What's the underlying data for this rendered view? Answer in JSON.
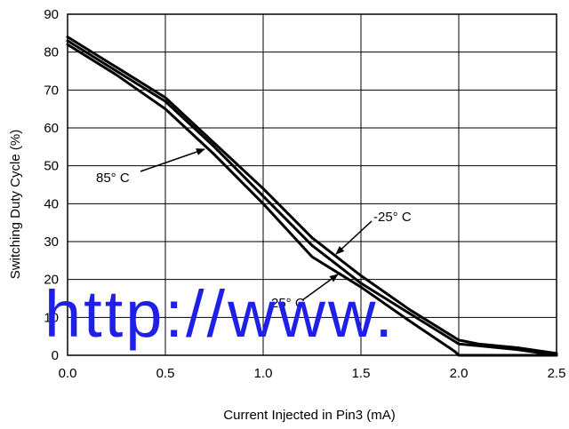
{
  "chart_data": {
    "type": "line",
    "xlabel": "Current Injected in Pin3 (mA)",
    "ylabel": "Switching Duty Cycle (%)",
    "xlim": [
      0,
      2.5
    ],
    "ylim": [
      0,
      90
    ],
    "x_ticks": [
      "0.0",
      "0.5",
      "1.0",
      "1.5",
      "2.0",
      "2.5"
    ],
    "y_ticks": [
      "0",
      "10",
      "20",
      "30",
      "40",
      "50",
      "60",
      "70",
      "80",
      "90"
    ],
    "grid": true,
    "series": [
      {
        "name": "85° C",
        "x": [
          0,
          0.25,
          0.5,
          0.75,
          1.0,
          1.25,
          1.5,
          1.75,
          1.98,
          2.0,
          2.5
        ],
        "y": [
          82,
          74,
          65,
          53,
          40,
          26,
          18,
          9,
          1,
          0,
          0
        ]
      },
      {
        "name": "25° C",
        "x": [
          0,
          0.25,
          0.5,
          0.75,
          1.0,
          1.25,
          1.5,
          1.75,
          2.0,
          2.1,
          2.3,
          2.5
        ],
        "y": [
          83,
          75,
          67,
          55,
          42,
          29,
          19,
          11,
          3,
          2.5,
          1.5,
          0
        ]
      },
      {
        "name": "-25° C",
        "x": [
          0,
          0.25,
          0.5,
          0.75,
          1.0,
          1.25,
          1.5,
          1.75,
          2.0,
          2.1,
          2.3,
          2.5
        ],
        "y": [
          84,
          76,
          68,
          56,
          44,
          31,
          21,
          12,
          4,
          3,
          2,
          0.5
        ]
      }
    ],
    "annotations": [
      {
        "text": "85° C",
        "points_to": "85° C",
        "label_at": [
          0.2,
          46
        ]
      },
      {
        "text": "-25° C",
        "points_to": "-25° C",
        "label_at": [
          1.75,
          36
        ]
      },
      {
        "text": "25° C",
        "points_to": "25° C",
        "label_at": [
          1.18,
          14
        ]
      }
    ],
    "watermark": "http://www."
  }
}
